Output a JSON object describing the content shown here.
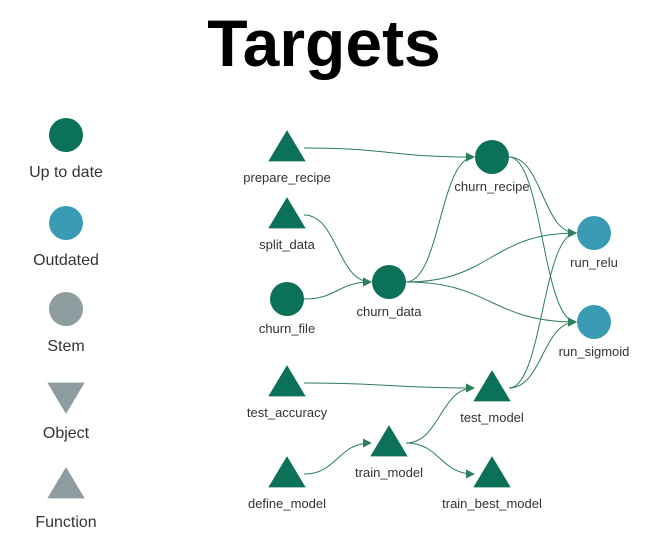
{
  "title": "Targets",
  "colors": {
    "up_to_date": "#0b7159",
    "outdated": "#3a9cb4",
    "stem": "#8c9c9f",
    "edge": "#2e7d5b"
  },
  "legend": [
    {
      "key": "up-to-date",
      "label": "Up to date",
      "shape": "circle",
      "color": "up_to_date"
    },
    {
      "key": "outdated",
      "label": "Outdated",
      "shape": "circle",
      "color": "outdated"
    },
    {
      "key": "stem",
      "label": "Stem",
      "shape": "circle",
      "color": "stem"
    },
    {
      "key": "object",
      "label": "Object",
      "shape": "triangle-down",
      "color": "stem"
    },
    {
      "key": "function",
      "label": "Function",
      "shape": "triangle-up",
      "color": "stem"
    }
  ],
  "nodes": [
    {
      "id": "prepare_recipe",
      "label": "prepare_recipe",
      "shape": "triangle-up",
      "status": "up_to_date"
    },
    {
      "id": "split_data",
      "label": "split_data",
      "shape": "triangle-up",
      "status": "up_to_date"
    },
    {
      "id": "churn_file",
      "label": "churn_file",
      "shape": "circle",
      "status": "up_to_date"
    },
    {
      "id": "test_accuracy",
      "label": "test_accuracy",
      "shape": "triangle-up",
      "status": "up_to_date"
    },
    {
      "id": "define_model",
      "label": "define_model",
      "shape": "triangle-up",
      "status": "up_to_date"
    },
    {
      "id": "churn_data",
      "label": "churn_data",
      "shape": "circle",
      "status": "up_to_date"
    },
    {
      "id": "train_model",
      "label": "train_model",
      "shape": "triangle-up",
      "status": "up_to_date"
    },
    {
      "id": "churn_recipe",
      "label": "churn_recipe",
      "shape": "circle",
      "status": "up_to_date"
    },
    {
      "id": "test_model",
      "label": "test_model",
      "shape": "triangle-up",
      "status": "up_to_date"
    },
    {
      "id": "train_best_model",
      "label": "train_best_model",
      "shape": "triangle-up",
      "status": "up_to_date"
    },
    {
      "id": "run_relu",
      "label": "run_relu",
      "shape": "circle",
      "status": "outdated"
    },
    {
      "id": "run_sigmoid",
      "label": "run_sigmoid",
      "shape": "circle",
      "status": "outdated"
    }
  ],
  "edges": [
    {
      "from": "prepare_recipe",
      "to": "churn_recipe"
    },
    {
      "from": "split_data",
      "to": "churn_data"
    },
    {
      "from": "churn_file",
      "to": "churn_data"
    },
    {
      "from": "churn_data",
      "to": "churn_recipe"
    },
    {
      "from": "churn_data",
      "to": "run_relu"
    },
    {
      "from": "churn_data",
      "to": "run_sigmoid"
    },
    {
      "from": "churn_recipe",
      "to": "run_relu"
    },
    {
      "from": "churn_recipe",
      "to": "run_sigmoid"
    },
    {
      "from": "test_accuracy",
      "to": "test_model"
    },
    {
      "from": "define_model",
      "to": "train_model"
    },
    {
      "from": "train_model",
      "to": "test_model"
    },
    {
      "from": "train_model",
      "to": "train_best_model"
    },
    {
      "from": "test_model",
      "to": "run_relu"
    },
    {
      "from": "test_model",
      "to": "run_sigmoid"
    }
  ]
}
